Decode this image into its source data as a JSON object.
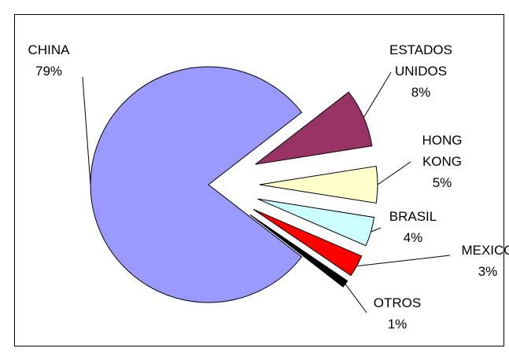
{
  "chart_data": {
    "type": "pie",
    "categories": [
      "CHINA",
      "ESTADOS UNIDOS",
      "HONG KONG",
      "BRASIL",
      "MEXICO",
      "OTROS"
    ],
    "values": [
      79,
      8,
      5,
      4,
      3,
      1
    ],
    "value_labels": [
      "79%",
      "8%",
      "5%",
      "4%",
      "3%",
      "1%"
    ],
    "colors": [
      "#9999ff",
      "#993366",
      "#ffffcc",
      "#ccffff",
      "#ff0000",
      "#000000"
    ]
  }
}
